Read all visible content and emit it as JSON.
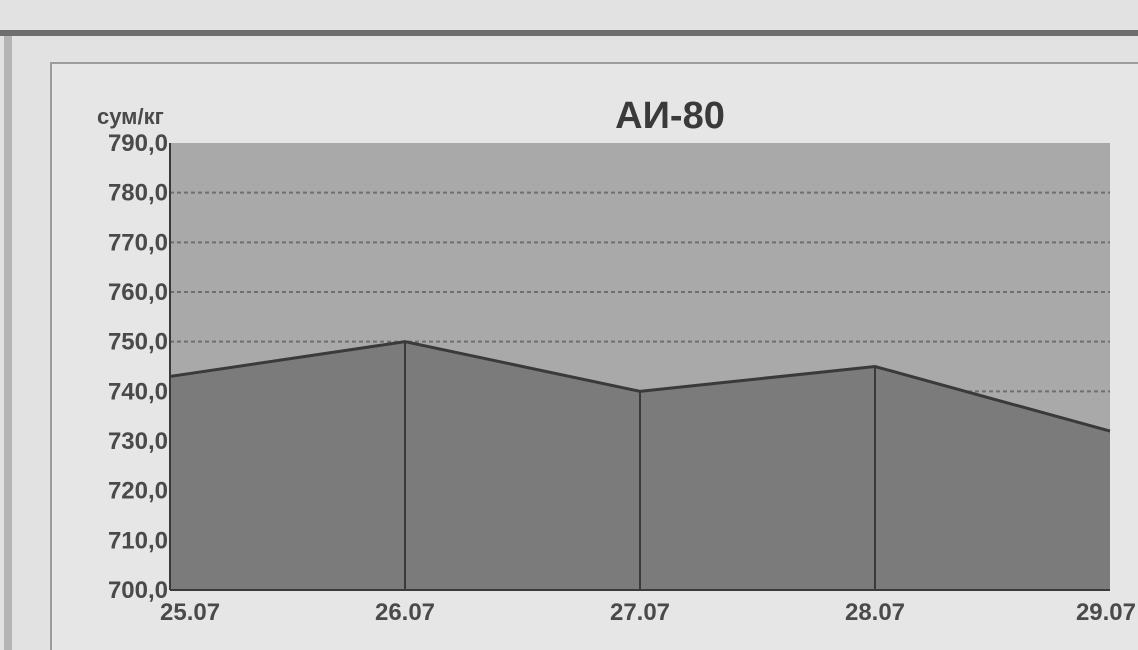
{
  "chart_data": {
    "type": "area",
    "title": "АИ-80",
    "ylabel": "сум/кг",
    "xlabel": "",
    "categories": [
      "25.07",
      "26.07",
      "27.07",
      "28.07",
      "29.07"
    ],
    "series": [
      {
        "values": [
          743,
          750,
          740,
          745,
          732
        ]
      }
    ],
    "ylim": [
      700,
      790
    ],
    "yticks": [
      "790,0",
      "780,0",
      "770,0",
      "760,0",
      "750,0",
      "740,0",
      "730,0",
      "720,0",
      "710,0",
      "700,0"
    ],
    "grid": true,
    "colors": {
      "plot_background": "#a9a9a9",
      "area_fill": "#7b7b7b",
      "area_line": "#3a3a3a",
      "gridline": "#6f6f6f"
    }
  }
}
